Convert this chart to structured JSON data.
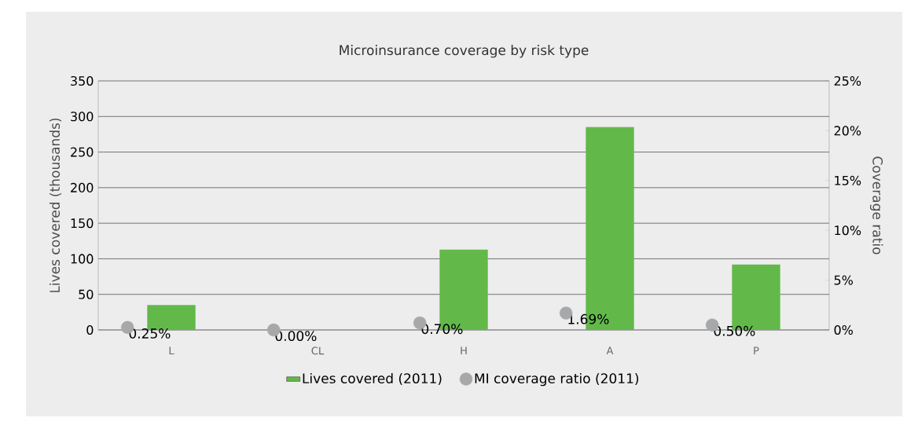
{
  "chart_data": {
    "type": "bar",
    "title": "Microinsurance coverage by risk type",
    "categories": [
      "L",
      "CL",
      "H",
      "A",
      "P"
    ],
    "series": [
      {
        "name": "Lives covered (2011)",
        "color": "#62b94a",
        "values": [
          35,
          0,
          113,
          285,
          92
        ]
      },
      {
        "name": "MI coverage ratio (2011)",
        "type": "scatter",
        "axis": "y2",
        "color": "#a7a8aa",
        "values": [
          0.25,
          0.0,
          0.7,
          1.69,
          0.5
        ],
        "value_labels": [
          "0.25%",
          "0.00%",
          "0.70%",
          "1.69%",
          "0.50%"
        ]
      }
    ],
    "ylabel": "Lives covered (thousands)",
    "y2label": "Coverage ratio",
    "ylim": [
      0,
      350
    ],
    "yticks": [
      0,
      50,
      100,
      150,
      200,
      250,
      300,
      350
    ],
    "y2lim": [
      0,
      25
    ],
    "y2ticks": [
      {
        "value": 0,
        "label": "0%"
      },
      {
        "value": 5,
        "label": "5%"
      },
      {
        "value": 10,
        "label": "10%"
      },
      {
        "value": 15,
        "label": "15%"
      },
      {
        "value": 20,
        "label": "20%"
      },
      {
        "value": 25,
        "label": "25%"
      }
    ],
    "grid": "y",
    "legend": "bottom"
  }
}
